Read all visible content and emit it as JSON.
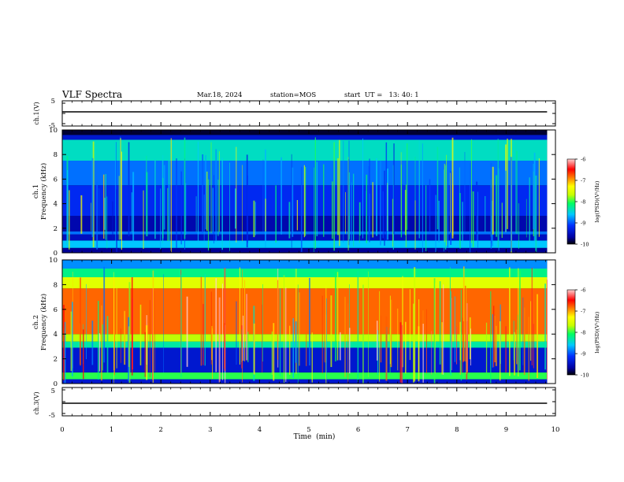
{
  "header": {
    "title": "VLF Spectra",
    "date": "Mar.18, 2024",
    "station": "station=MOS",
    "start": "start  UT =   13: 40: 1"
  },
  "chart_data": [
    {
      "type": "line",
      "panel": "ch1-waveform",
      "ylabel": "ch.1(V)",
      "yticks": [
        "5",
        "-5"
      ],
      "ylim": [
        -5,
        5
      ],
      "x": [
        0,
        9.83
      ],
      "values": [
        0,
        0
      ]
    },
    {
      "type": "heatmap",
      "panel": "ch1-spectrogram",
      "ylabel": "ch.1",
      "ylabel2": "Frequency (kHz)",
      "yticks": [
        "0",
        "2",
        "4",
        "6",
        "8",
        "10"
      ],
      "ylim": [
        0,
        10
      ],
      "xlim": [
        0,
        9.83
      ],
      "colorbar": {
        "ticks": [
          "-6",
          "-7",
          "-8",
          "-9",
          "-10"
        ],
        "range": [
          -10,
          -6
        ],
        "label": "log(PSD)(V²/Hz)"
      },
      "bands": [
        {
          "f0": 0.0,
          "f1": 0.4,
          "level": -9.7
        },
        {
          "f0": 0.4,
          "f1": 1.0,
          "level": -8.6
        },
        {
          "f0": 1.0,
          "f1": 1.5,
          "level": -9.5
        },
        {
          "f0": 1.5,
          "f1": 1.75,
          "level": -8.9
        },
        {
          "f0": 1.75,
          "f1": 3.0,
          "level": -9.6
        },
        {
          "f0": 3.0,
          "f1": 5.5,
          "level": -9.2
        },
        {
          "f0": 5.5,
          "f1": 7.5,
          "level": -8.9
        },
        {
          "f0": 7.5,
          "f1": 9.2,
          "level": -8.4
        },
        {
          "f0": 9.2,
          "f1": 9.6,
          "level": -9.4
        },
        {
          "f0": 9.6,
          "f1": 10.0,
          "level": -9.9
        }
      ]
    },
    {
      "type": "heatmap",
      "panel": "ch2-spectrogram",
      "ylabel": "ch.2",
      "ylabel2": "Frequency (kHz)",
      "yticks": [
        "0",
        "2",
        "4",
        "6",
        "8",
        "10"
      ],
      "ylim": [
        0,
        10
      ],
      "xlim": [
        0,
        9.83
      ],
      "colorbar": {
        "ticks": [
          "-6",
          "-7",
          "-8",
          "-9",
          "-10"
        ],
        "range": [
          -10,
          -6
        ],
        "label": "log(PSD)(V²/Hz)"
      },
      "bands": [
        {
          "f0": 0.0,
          "f1": 0.35,
          "level": -9.4
        },
        {
          "f0": 0.35,
          "f1": 0.9,
          "level": -8.0
        },
        {
          "f0": 0.9,
          "f1": 2.9,
          "level": -9.4
        },
        {
          "f0": 2.9,
          "f1": 3.4,
          "level": -8.3
        },
        {
          "f0": 3.4,
          "f1": 4.0,
          "level": -7.7
        },
        {
          "f0": 4.0,
          "f1": 7.7,
          "level": -6.8
        },
        {
          "f0": 7.7,
          "f1": 8.6,
          "level": -7.5
        },
        {
          "f0": 8.6,
          "f1": 9.3,
          "level": -8.2
        },
        {
          "f0": 9.3,
          "f1": 10.0,
          "level": -8.8
        }
      ]
    },
    {
      "type": "line",
      "panel": "ch3-waveform",
      "ylabel": "ch.3(V)",
      "yticks": [
        "5",
        "-5"
      ],
      "ylim": [
        -5,
        5
      ],
      "x": [
        0,
        9.83
      ],
      "values": [
        0,
        0
      ]
    }
  ],
  "xaxis": {
    "label": "Time  (min)",
    "ticks": [
      "0",
      "1",
      "2",
      "3",
      "4",
      "5",
      "6",
      "7",
      "8",
      "9",
      "10"
    ],
    "xlim": [
      0,
      10
    ]
  }
}
